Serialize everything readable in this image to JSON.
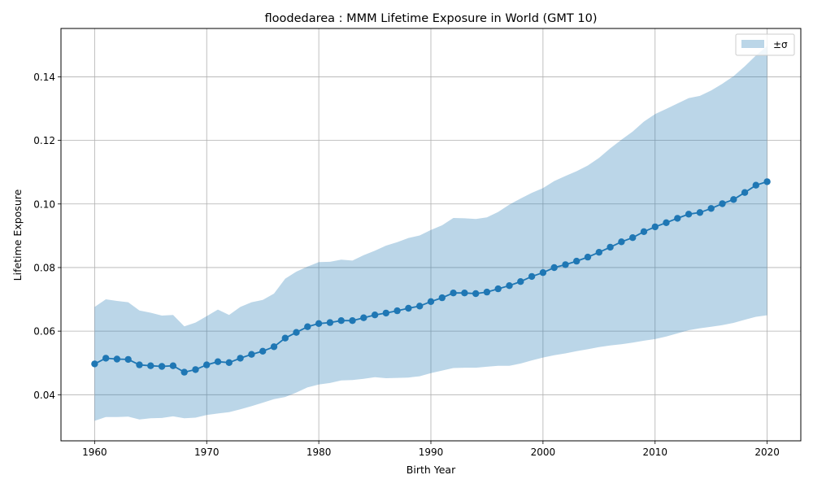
{
  "chart_data": {
    "type": "line",
    "title": "floodedarea : MMM Lifetime Exposure in World (GMT 10)",
    "xlabel": "Birth Year",
    "ylabel": "Lifetime Exposure",
    "xlim": [
      1957,
      2023
    ],
    "ylim": [
      0.0255,
      0.1552
    ],
    "xticks": [
      "1960",
      "1970",
      "1980",
      "1990",
      "2000",
      "2010",
      "2020"
    ],
    "yticks": [
      "0.04",
      "0.06",
      "0.08",
      "0.10",
      "0.12",
      "0.14"
    ],
    "grid": true,
    "legend": {
      "placement": "top-right",
      "label": "±σ"
    },
    "colors": {
      "line": "#1f77b4",
      "band": "#1f77b4"
    },
    "x": [
      1960,
      1961,
      1962,
      1963,
      1964,
      1965,
      1966,
      1967,
      1968,
      1969,
      1970,
      1971,
      1972,
      1973,
      1974,
      1975,
      1976,
      1977,
      1978,
      1979,
      1980,
      1981,
      1982,
      1983,
      1984,
      1985,
      1986,
      1987,
      1988,
      1989,
      1990,
      1991,
      1992,
      1993,
      1994,
      1995,
      1996,
      1997,
      1998,
      1999,
      2000,
      2001,
      2002,
      2003,
      2004,
      2005,
      2006,
      2007,
      2008,
      2009,
      2010,
      2011,
      2012,
      2013,
      2014,
      2015,
      2016,
      2017,
      2018,
      2019,
      2020
    ],
    "series": [
      {
        "values": [
          0.0497,
          0.0515,
          0.0512,
          0.0511,
          0.0494,
          0.0491,
          0.0489,
          0.0491,
          0.0471,
          0.0479,
          0.0494,
          0.0504,
          0.0501,
          0.0515,
          0.0527,
          0.0537,
          0.0551,
          0.0578,
          0.0596,
          0.0614,
          0.0624,
          0.0627,
          0.0633,
          0.0633,
          0.0642,
          0.0651,
          0.0657,
          0.0664,
          0.0672,
          0.0679,
          0.0693,
          0.0705,
          0.072,
          0.072,
          0.0718,
          0.0723,
          0.0733,
          0.0743,
          0.0756,
          0.0772,
          0.0784,
          0.08,
          0.0809,
          0.082,
          0.0833,
          0.0848,
          0.0864,
          0.0881,
          0.0894,
          0.0913,
          0.0928,
          0.0941,
          0.0955,
          0.0968,
          0.0973,
          0.0986,
          0.1001,
          0.1014,
          0.1036,
          0.1059,
          0.107
        ]
      }
    ],
    "band": {
      "upper": [
        0.0676,
        0.07,
        0.0695,
        0.0691,
        0.0665,
        0.0658,
        0.0649,
        0.0651,
        0.0615,
        0.0627,
        0.0647,
        0.0668,
        0.0651,
        0.0676,
        0.0691,
        0.0698,
        0.0718,
        0.0765,
        0.0787,
        0.0803,
        0.0817,
        0.0818,
        0.0825,
        0.0822,
        0.0839,
        0.0853,
        0.0869,
        0.088,
        0.0893,
        0.0901,
        0.0918,
        0.0933,
        0.0956,
        0.0955,
        0.0953,
        0.0958,
        0.0975,
        0.0998,
        0.1017,
        0.1035,
        0.105,
        0.1072,
        0.1088,
        0.1103,
        0.1121,
        0.1145,
        0.1175,
        0.1202,
        0.1228,
        0.1259,
        0.1283,
        0.1299,
        0.1316,
        0.1333,
        0.134,
        0.1357,
        0.1378,
        0.1402,
        0.1433,
        0.1467,
        0.1497
      ],
      "lower": [
        0.0318,
        0.033,
        0.033,
        0.0331,
        0.0322,
        0.0326,
        0.0327,
        0.0332,
        0.0326,
        0.0328,
        0.0336,
        0.0341,
        0.0345,
        0.0354,
        0.0364,
        0.0375,
        0.0386,
        0.0393,
        0.0407,
        0.0423,
        0.0432,
        0.0437,
        0.0445,
        0.0446,
        0.045,
        0.0455,
        0.0452,
        0.0453,
        0.0454,
        0.0458,
        0.0468,
        0.0476,
        0.0484,
        0.0485,
        0.0485,
        0.0488,
        0.0491,
        0.0491,
        0.0498,
        0.0508,
        0.0517,
        0.0524,
        0.053,
        0.0537,
        0.0543,
        0.055,
        0.0555,
        0.0559,
        0.0564,
        0.057,
        0.0575,
        0.0583,
        0.0593,
        0.0603,
        0.0609,
        0.0614,
        0.0619,
        0.0626,
        0.0636,
        0.0645,
        0.065
      ]
    }
  }
}
